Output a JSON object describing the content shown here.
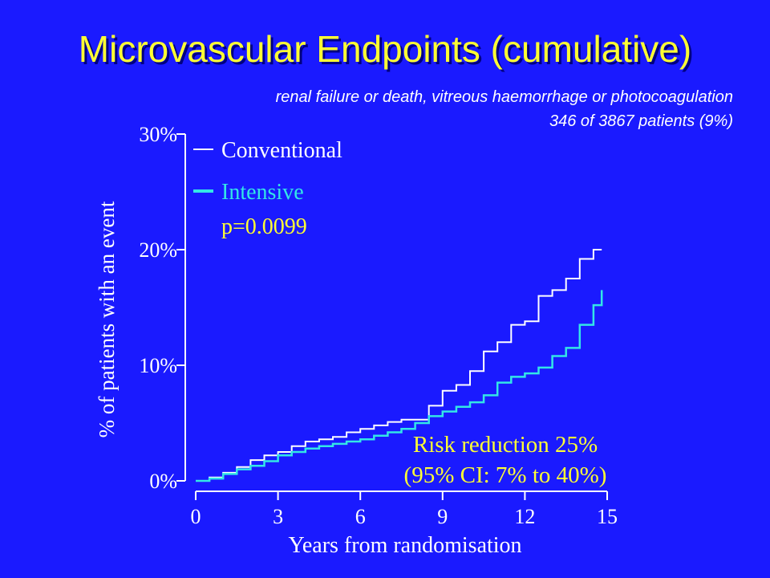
{
  "title": "Microvascular Endpoints (cumulative)",
  "subtitle": "renal failure or death, vitreous haemorrhage or photocoagulation",
  "patients_note": "346 of 3867 patients (9%)",
  "colors": {
    "background": "#1a1aff",
    "title": "#ffff33",
    "conventional": "#ffffff",
    "intensive": "#33e6e6",
    "annotation": "#ffff33"
  },
  "chart_data": {
    "type": "line",
    "xlabel": "Years from randomisation",
    "ylabel": "% of patients with an event",
    "xlim": [
      0,
      15
    ],
    "ylim": [
      0,
      30
    ],
    "xticks": [
      "0",
      "3",
      "6",
      "9",
      "12",
      "15"
    ],
    "yticks": [
      "0%",
      "10%",
      "20%",
      "30%"
    ],
    "legend_position": "top-left",
    "grid": false,
    "series": [
      {
        "name": "Conventional",
        "x": [
          0,
          0.5,
          1,
          1.5,
          2,
          2.5,
          3,
          3.5,
          4,
          4.5,
          5,
          5.5,
          6,
          6.5,
          7,
          7.5,
          8,
          8.5,
          9,
          9.5,
          10,
          10.5,
          11,
          11.5,
          12,
          12.5,
          13,
          13.5,
          14,
          14.5,
          14.8
        ],
        "y": [
          0,
          0.3,
          0.7,
          1.2,
          1.8,
          2.2,
          2.5,
          3,
          3.4,
          3.6,
          3.8,
          4.2,
          4.5,
          4.8,
          5.1,
          5.3,
          5.3,
          6.5,
          7.8,
          8.3,
          9.5,
          11.2,
          12,
          13.5,
          13.8,
          16,
          16.5,
          17.5,
          19.2,
          20,
          20
        ]
      },
      {
        "name": "Intensive",
        "x": [
          0,
          0.5,
          1,
          1.5,
          2,
          2.5,
          3,
          3.5,
          4,
          4.5,
          5,
          5.5,
          6,
          6.5,
          7,
          7.5,
          8,
          8.5,
          9,
          9.5,
          10,
          10.5,
          11,
          11.5,
          12,
          12.5,
          13,
          13.5,
          14,
          14.5,
          14.8
        ],
        "y": [
          0,
          0.2,
          0.6,
          1.0,
          1.3,
          1.7,
          2.2,
          2.5,
          2.8,
          3.0,
          3.2,
          3.4,
          3.6,
          3.9,
          4.2,
          4.5,
          5.0,
          5.6,
          6.0,
          6.4,
          6.8,
          7.4,
          8.5,
          9.0,
          9.3,
          9.8,
          10.8,
          11.5,
          13.5,
          15.2,
          16.5
        ]
      }
    ],
    "annotations": {
      "p_value": "p=0.0099",
      "risk_reduction": "Risk reduction 25%",
      "ci": "(95% CI: 7% to 40%)"
    }
  }
}
